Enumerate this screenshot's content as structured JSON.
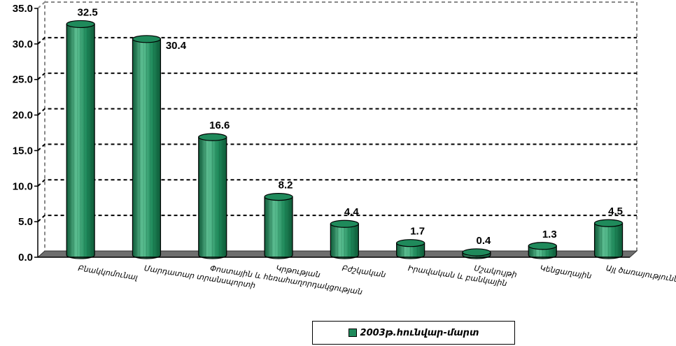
{
  "chart_data": {
    "type": "bar",
    "categories": [
      "Բնակկոմունալ",
      "Մարդատար տրանսպորտի",
      "Փոստային և հեռահաղորդակցության",
      "Կրթության",
      "Բժշկական",
      "Իրավական և բանկային",
      "Մշակույթի",
      "Կենցաղային",
      "Այլ ծառայություններ"
    ],
    "series": [
      {
        "name": "2003թ.հունվար-մարտ",
        "values": [
          32.5,
          30.4,
          16.6,
          8.2,
          4.4,
          1.7,
          0.4,
          1.3,
          4.5
        ]
      }
    ],
    "ylim": [
      0,
      35
    ],
    "yticks": [
      "0.0",
      "5.0",
      "10.0",
      "15.0",
      "20.0",
      "25.0",
      "30.0",
      "35.0"
    ],
    "data_labels": [
      "32.5",
      "30.4",
      "16.6",
      "8.2",
      "4.4",
      "1.7",
      "0.4",
      "1.3",
      "4.5"
    ],
    "grid": true,
    "legend_position": "bottom",
    "colors": {
      "bar": "#1f8a5b",
      "bar_dark": "#0f5a38",
      "bar_light": "#5fc295",
      "floor": "#6e6e6e"
    }
  }
}
